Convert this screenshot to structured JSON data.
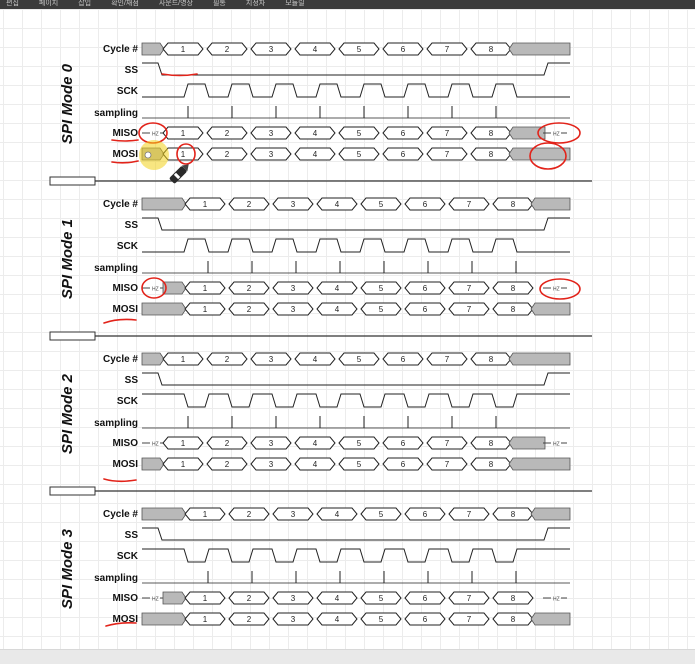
{
  "menubar": {
    "items": [
      "편집",
      "페이지",
      "삽입",
      "확인/채점",
      "사운드/영상",
      "필통",
      "지정자",
      "모듈릴"
    ]
  },
  "modes": [
    {
      "title": "SPI Mode 0",
      "cpol": 0,
      "cpha": 0,
      "miso_z_lead": false,
      "mosi_z_lead": false
    },
    {
      "title": "SPI Mode 1",
      "cpol": 0,
      "cpha": 1,
      "miso_z_lead": true,
      "mosi_z_lead": false
    },
    {
      "title": "SPI Mode 2",
      "cpol": 1,
      "cpha": 0,
      "miso_z_lead": false,
      "mosi_z_lead": false
    },
    {
      "title": "SPI Mode 3",
      "cpol": 1,
      "cpha": 1,
      "miso_z_lead": true,
      "mosi_z_lead": false
    }
  ],
  "row_labels": {
    "cycle": "Cycle #",
    "ss": "SS",
    "sck": "SCK",
    "sampling": "sampling",
    "miso": "MISO",
    "mosi": "MOSI"
  },
  "cycle_numbers": [
    "1",
    "2",
    "3",
    "4",
    "5",
    "6",
    "7",
    "8"
  ],
  "hiz_label": "HZ",
  "annotation_color": "#e2231a",
  "highlight_color": "#f3d21a",
  "signal_gray": "#b9b9b9"
}
